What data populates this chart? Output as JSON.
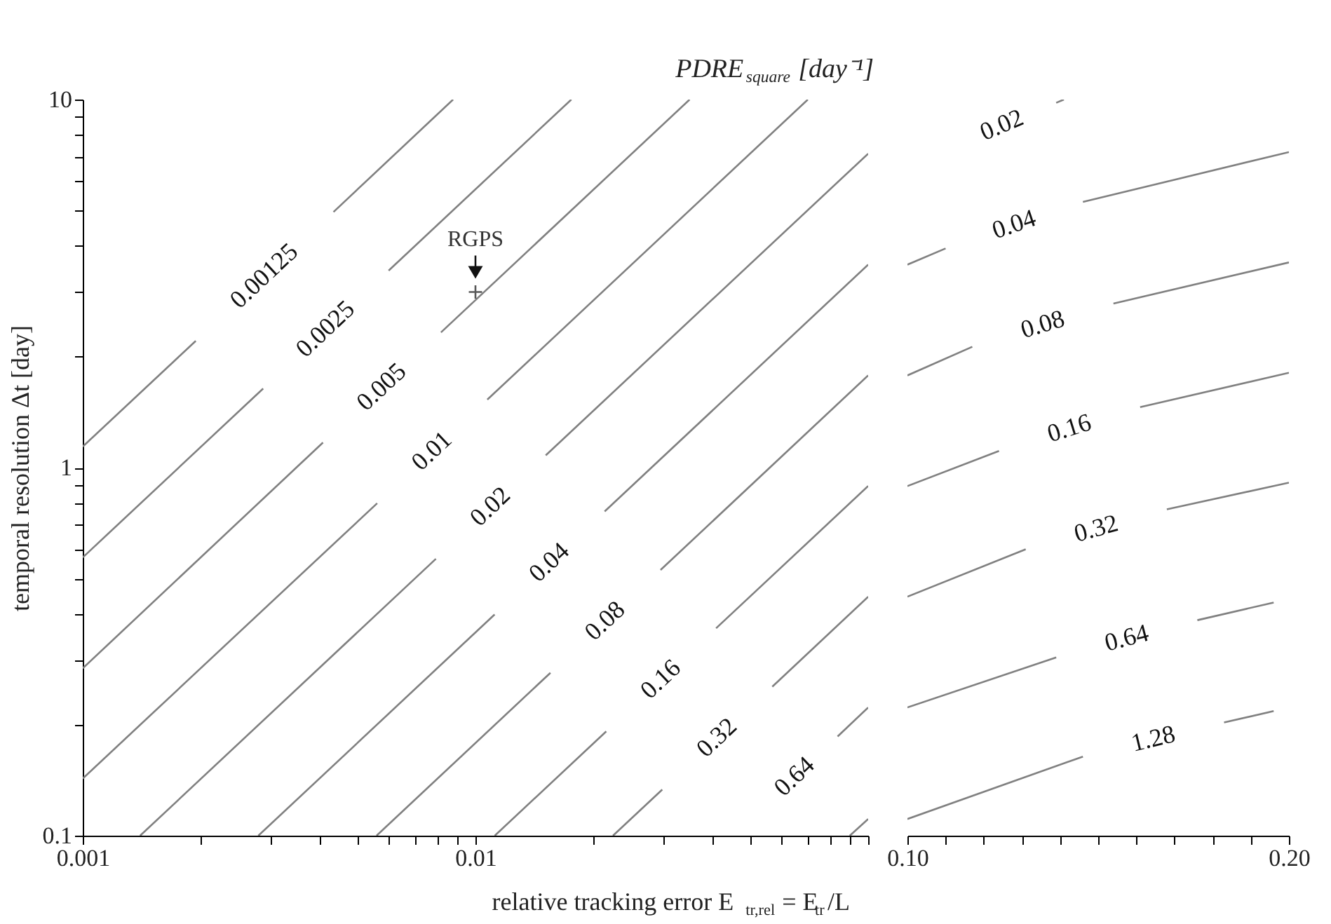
{
  "chart_data": [
    {
      "type": "line",
      "title": "PDRE$_{square}$ [day⁻¹]",
      "xlabel": "relative tracking error E$_{tr,rel}$= E$_{tr}$/L",
      "ylabel": "temporal resolution Δt [day]",
      "log": "xy",
      "xlim": [
        0.001,
        0.1
      ],
      "ylim": [
        0.1,
        10
      ],
      "xticks": [
        0.001,
        {
          "value": 0.002,
          "label": null
        },
        {
          "value": 0.003,
          "label": null
        },
        {
          "value": 0.004,
          "label": null
        },
        {
          "value": 0.005,
          "label": null
        },
        {
          "value": 0.006,
          "label": null
        },
        {
          "value": 0.007,
          "label": null
        },
        {
          "value": 0.008,
          "label": null
        },
        {
          "value": 0.009,
          "label": null
        },
        0.01,
        {
          "value": 0.02,
          "label": null
        },
        {
          "value": 0.03,
          "label": null
        },
        {
          "value": 0.04,
          "label": null
        },
        {
          "value": 0.05,
          "label": null
        },
        {
          "value": 0.06,
          "label": null
        },
        {
          "value": 0.07,
          "label": null
        },
        {
          "value": 0.08,
          "label": null
        },
        {
          "value": 0.09,
          "label": null
        },
        {
          "value": 0.1,
          "label": null
        }
      ],
      "yticks": [
        0.1,
        {
          "value": 0.2,
          "label": null
        },
        {
          "value": 0.3,
          "label": null
        },
        {
          "value": 0.4,
          "label": null
        },
        {
          "value": 0.5,
          "label": null
        },
        {
          "value": 0.6,
          "label": null
        },
        {
          "value": 0.7,
          "label": null
        },
        {
          "value": 0.8,
          "label": null
        },
        {
          "value": 0.9,
          "label": null
        },
        1,
        {
          "value": 2,
          "label": null
        },
        {
          "value": 3,
          "label": null
        },
        {
          "value": 4,
          "label": null
        },
        {
          "value": 5,
          "label": null
        },
        {
          "value": 6,
          "label": null
        },
        {
          "value": 7,
          "label": null
        },
        {
          "value": 8,
          "label": null
        },
        {
          "value": 9,
          "label": null
        },
        10
      ],
      "annotations": [
        {
          "text": "RGPS",
          "x": 0.01,
          "y": 3
        }
      ],
      "series": [
        {
          "name": "0.00125",
          "color": "#808080",
          "x": [
            0.001,
            0.00194,
            null,
            0.00435,
            0.00877
          ],
          "values": [
            1.14,
            2.21,
            null,
            4.95,
            10
          ]
        },
        {
          "name": "0.0025",
          "color": "#808080",
          "x": [
            0.001,
            0.00288,
            null,
            0.00601,
            0.01754
          ],
          "values": [
            0.57,
            1.64,
            null,
            3.43,
            10
          ]
        },
        {
          "name": "0.005",
          "color": "#808080",
          "x": [
            0.001,
            0.00409,
            null,
            0.00817,
            0.0351
          ],
          "values": [
            0.285,
            1.17,
            null,
            2.33,
            10
          ]
        },
        {
          "name": "0.01",
          "color": "#808080",
          "x": [
            0.001,
            0.00562,
            null,
            0.01072,
            0.0702
          ],
          "values": [
            0.143,
            0.8,
            null,
            1.53,
            10
          ]
        },
        {
          "name": "0.02",
          "color": "#808080",
          "x": [
            0.0014,
            0.00793,
            null,
            0.0151,
            0.1
          ],
          "values": [
            0.1,
            0.565,
            null,
            1.08,
            7.13
          ]
        },
        {
          "name": "0.04",
          "color": "#808080",
          "x": [
            0.0028,
            0.01119,
            null,
            0.02133,
            0.1
          ],
          "values": [
            0.1,
            0.399,
            null,
            0.76,
            3.56
          ]
        },
        {
          "name": "0.08",
          "color": "#808080",
          "x": [
            0.0056,
            0.01552,
            null,
            0.0296,
            0.1
          ],
          "values": [
            0.1,
            0.277,
            null,
            0.527,
            1.78
          ]
        },
        {
          "name": "0.16",
          "color": "#808080",
          "x": [
            0.0112,
            0.02153,
            null,
            0.041,
            0.1
          ],
          "values": [
            0.1,
            0.192,
            null,
            0.366,
            0.891
          ]
        },
        {
          "name": "0.32",
          "color": "#808080",
          "x": [
            0.0224,
            0.0299,
            null,
            0.057,
            0.1
          ],
          "values": [
            0.1,
            0.1334,
            null,
            0.254,
            0.446
          ]
        },
        {
          "name": "0.64",
          "color": "#808080",
          "x": [
            0.0836,
            0.1
          ],
          "values": [
            0.186,
            0.223
          ]
        },
        {
          "color": "#808080",
          "x": [
            0.0898,
            0.1
          ],
          "values": [
            0.1,
            0.111
          ]
        }
      ]
    },
    {
      "type": "line",
      "log": "y",
      "tick_labels": "x",
      "xlim": [
        0.1,
        0.2
      ],
      "ylim": [
        0.1,
        10
      ],
      "xticks": [
        {
          "value": 0.1,
          "label": "0.10"
        },
        {
          "value": 0.11,
          "label": null
        },
        {
          "value": 0.12,
          "label": null
        },
        {
          "value": 0.13,
          "label": null
        },
        {
          "value": 0.14,
          "label": null
        },
        {
          "value": 0.15,
          "label": null
        },
        {
          "value": 0.16,
          "label": null
        },
        {
          "value": 0.17,
          "label": null
        },
        {
          "value": 0.18,
          "label": null
        },
        {
          "value": 0.19,
          "label": null
        },
        {
          "value": 0.2,
          "label": "0.20"
        }
      ],
      "series": [
        {
          "name": "0.02",
          "color": "#808080",
          "x": [
            0.139,
            0.141
          ],
          "values": [
            9.8,
            10
          ]
        },
        {
          "name": "0.04",
          "color": "#808080",
          "x": [
            0.1,
            0.11,
            null,
            0.146,
            0.2
          ],
          "values": [
            3.56,
            3.94,
            null,
            5.27,
            7.2
          ]
        },
        {
          "name": "0.08",
          "color": "#808080",
          "x": [
            0.1,
            0.117,
            null,
            0.154,
            0.2
          ],
          "values": [
            1.78,
            2.13,
            null,
            2.79,
            3.61
          ]
        },
        {
          "name": "0.16",
          "color": "#808080",
          "x": [
            0.1,
            0.124,
            null,
            0.161,
            0.2
          ],
          "values": [
            0.891,
            1.11,
            null,
            1.46,
            1.81
          ]
        },
        {
          "name": "0.32",
          "color": "#808080",
          "x": [
            0.1,
            0.131,
            null,
            0.168,
            0.2
          ],
          "values": [
            0.446,
            0.6,
            null,
            0.77,
            0.91
          ]
        },
        {
          "name": "0.64",
          "color": "#808080",
          "x": [
            0.1,
            0.139,
            null,
            0.176,
            0.196
          ],
          "values": [
            0.223,
            0.305,
            null,
            0.385,
            0.43
          ]
        },
        {
          "name": "1.28",
          "color": "#808080",
          "x": [
            0.1,
            0.146,
            null,
            0.183,
            0.196
          ],
          "values": [
            0.111,
            0.164,
            null,
            0.203,
            0.218
          ]
        }
      ]
    }
  ]
}
